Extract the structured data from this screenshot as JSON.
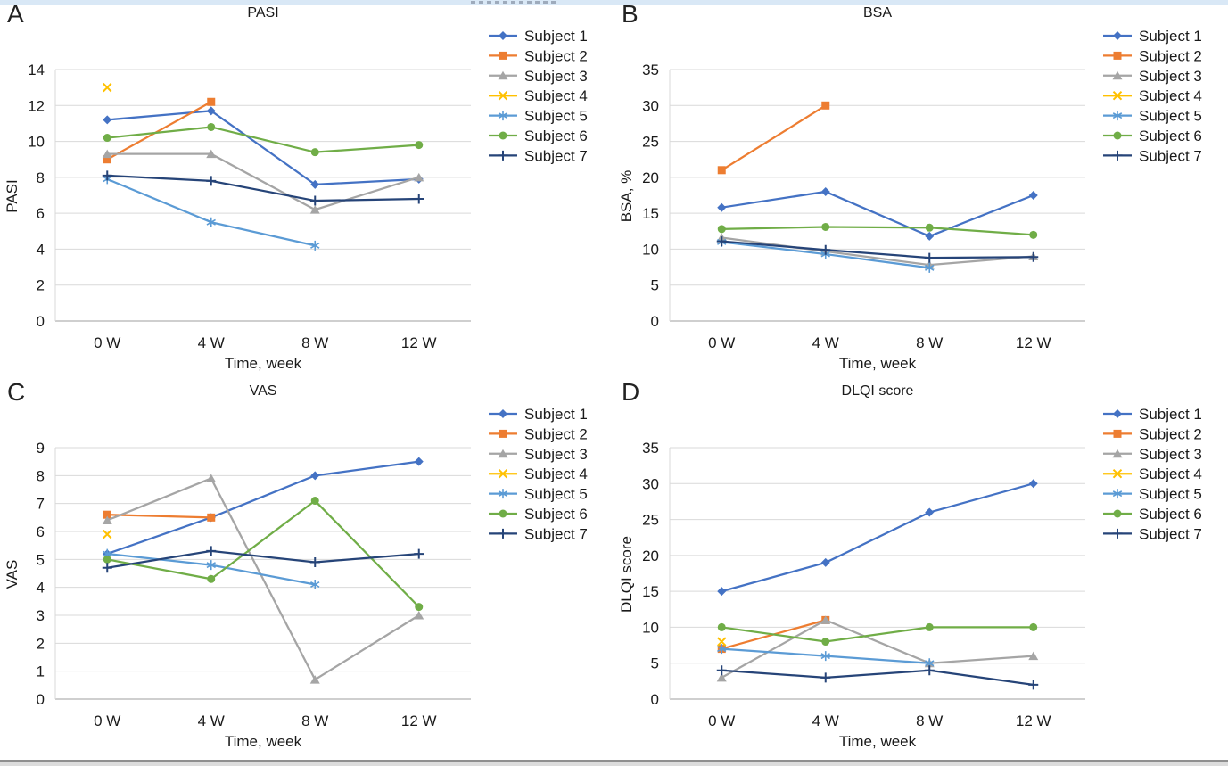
{
  "figure": {
    "background": "#ffffff",
    "top_strip_color": "#d9e8f6",
    "gridline_color": "#d9d9d9",
    "axis_line_color": "#bfbfbf",
    "text_color": "#1a1a1a"
  },
  "chart_data": [
    {
      "type": "line",
      "panel_label": "A",
      "title": "PASI",
      "ylabel": "PASI",
      "xlabel": "Time, week",
      "ylim": [
        0,
        14
      ],
      "ytick_step": 2,
      "grid": true,
      "legend_position": "right",
      "categories": [
        "0 W",
        "4 W",
        "8 W",
        "12 W"
      ],
      "series": [
        {
          "name": "Subject 1",
          "color": "#4472C4",
          "marker": "diamond",
          "values": [
            11.2,
            11.7,
            7.6,
            7.9
          ]
        },
        {
          "name": "Subject 2",
          "color": "#ED7D31",
          "marker": "square",
          "values": [
            9.0,
            12.2,
            null,
            null
          ]
        },
        {
          "name": "Subject 3",
          "color": "#A5A5A5",
          "marker": "triangle",
          "values": [
            9.3,
            9.3,
            6.2,
            8.0
          ]
        },
        {
          "name": "Subject 4",
          "color": "#FFC000",
          "marker": "x",
          "values": [
            13.0,
            null,
            null,
            null
          ]
        },
        {
          "name": "Subject 5",
          "color": "#5B9BD5",
          "marker": "asterisk",
          "values": [
            7.9,
            5.5,
            4.2,
            null
          ]
        },
        {
          "name": "Subject 6",
          "color": "#70AD47",
          "marker": "circle",
          "values": [
            10.2,
            10.8,
            9.4,
            9.8
          ]
        },
        {
          "name": "Subject 7",
          "color": "#264478",
          "marker": "plus",
          "values": [
            8.1,
            7.8,
            6.7,
            6.8
          ]
        }
      ]
    },
    {
      "type": "line",
      "panel_label": "B",
      "title": "BSA",
      "ylabel": "BSA, %",
      "xlabel": "Time, week",
      "ylim": [
        0,
        35
      ],
      "ytick_step": 5,
      "grid": true,
      "legend_position": "right",
      "categories": [
        "0 W",
        "4 W",
        "8 W",
        "12 W"
      ],
      "series": [
        {
          "name": "Subject 1",
          "color": "#4472C4",
          "marker": "diamond",
          "values": [
            15.8,
            18.0,
            11.8,
            17.5
          ]
        },
        {
          "name": "Subject 2",
          "color": "#ED7D31",
          "marker": "square",
          "values": [
            21.0,
            30.0,
            null,
            null
          ]
        },
        {
          "name": "Subject 3",
          "color": "#A5A5A5",
          "marker": "triangle",
          "values": [
            11.6,
            9.7,
            7.8,
            9.0
          ]
        },
        {
          "name": "Subject 4",
          "color": "#FFC000",
          "marker": "x",
          "values": [
            null,
            null,
            null,
            null
          ]
        },
        {
          "name": "Subject 5",
          "color": "#5B9BD5",
          "marker": "asterisk",
          "values": [
            11.0,
            9.3,
            7.4,
            null
          ]
        },
        {
          "name": "Subject 6",
          "color": "#70AD47",
          "marker": "circle",
          "values": [
            12.8,
            13.1,
            13.0,
            12.0
          ]
        },
        {
          "name": "Subject 7",
          "color": "#264478",
          "marker": "plus",
          "values": [
            11.1,
            9.9,
            8.8,
            8.9
          ]
        }
      ]
    },
    {
      "type": "line",
      "panel_label": "C",
      "title": "VAS",
      "ylabel": "VAS",
      "xlabel": "Time, week",
      "ylim": [
        0,
        9
      ],
      "ytick_step": 1,
      "grid": true,
      "legend_position": "right",
      "categories": [
        "0 W",
        "4 W",
        "8 W",
        "12 W"
      ],
      "series": [
        {
          "name": "Subject 1",
          "color": "#4472C4",
          "marker": "diamond",
          "values": [
            5.2,
            6.5,
            8.0,
            8.5
          ]
        },
        {
          "name": "Subject 2",
          "color": "#ED7D31",
          "marker": "square",
          "values": [
            6.6,
            6.5,
            null,
            null
          ]
        },
        {
          "name": "Subject 3",
          "color": "#A5A5A5",
          "marker": "triangle",
          "values": [
            6.4,
            7.9,
            0.7,
            3.0
          ]
        },
        {
          "name": "Subject 4",
          "color": "#FFC000",
          "marker": "x",
          "values": [
            5.9,
            null,
            null,
            null
          ]
        },
        {
          "name": "Subject 5",
          "color": "#5B9BD5",
          "marker": "asterisk",
          "values": [
            5.2,
            4.8,
            4.1,
            null
          ]
        },
        {
          "name": "Subject 6",
          "color": "#70AD47",
          "marker": "circle",
          "values": [
            5.0,
            4.3,
            7.1,
            3.3
          ]
        },
        {
          "name": "Subject 7",
          "color": "#264478",
          "marker": "plus",
          "values": [
            4.7,
            5.3,
            4.9,
            5.2
          ]
        }
      ]
    },
    {
      "type": "line",
      "panel_label": "D",
      "title": "DLQI score",
      "ylabel": "DLQI score",
      "xlabel": "Time, week",
      "ylim": [
        0,
        35
      ],
      "ytick_step": 5,
      "grid": true,
      "legend_position": "right",
      "categories": [
        "0 W",
        "4 W",
        "8 W",
        "12 W"
      ],
      "series": [
        {
          "name": "Subject 1",
          "color": "#4472C4",
          "marker": "diamond",
          "values": [
            15,
            19,
            26,
            30
          ]
        },
        {
          "name": "Subject 2",
          "color": "#ED7D31",
          "marker": "square",
          "values": [
            7,
            11,
            null,
            null
          ]
        },
        {
          "name": "Subject 3",
          "color": "#A5A5A5",
          "marker": "triangle",
          "values": [
            3,
            11,
            5,
            6
          ]
        },
        {
          "name": "Subject 4",
          "color": "#FFC000",
          "marker": "x",
          "values": [
            8,
            null,
            null,
            null
          ]
        },
        {
          "name": "Subject 5",
          "color": "#5B9BD5",
          "marker": "asterisk",
          "values": [
            7,
            6,
            5,
            null
          ]
        },
        {
          "name": "Subject 6",
          "color": "#70AD47",
          "marker": "circle",
          "values": [
            10,
            8,
            10,
            10
          ]
        },
        {
          "name": "Subject 7",
          "color": "#264478",
          "marker": "plus",
          "values": [
            4,
            3,
            4,
            2
          ]
        }
      ]
    }
  ]
}
